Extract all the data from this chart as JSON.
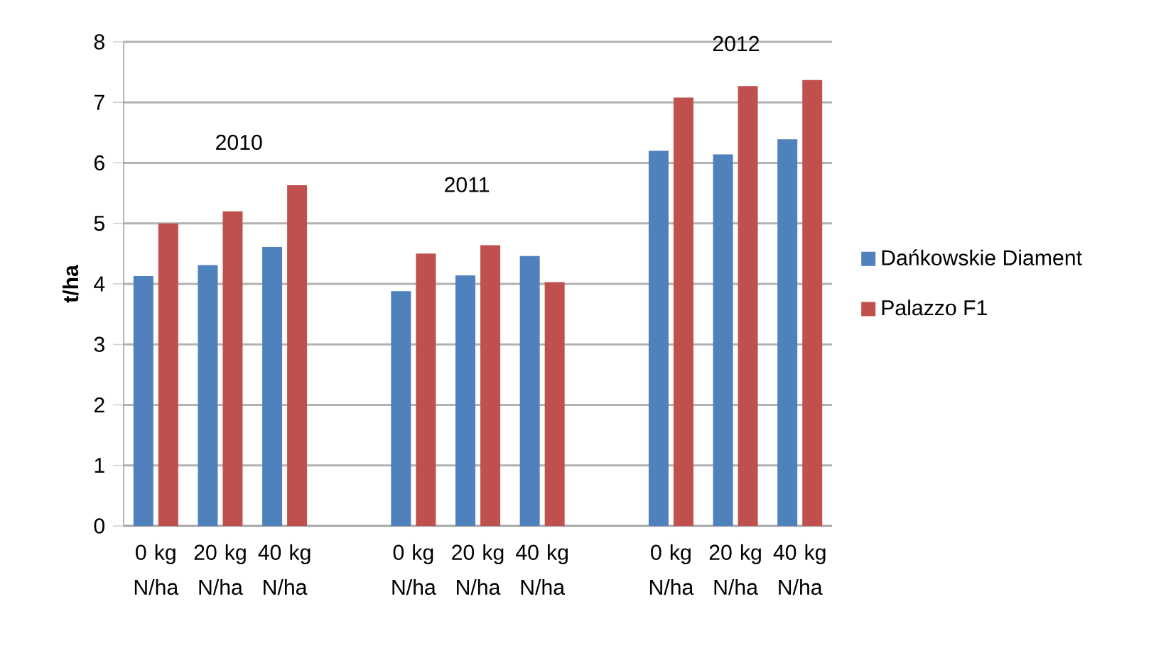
{
  "chart_data": {
    "type": "bar",
    "ylabel": "t/ha",
    "categories": [
      "0 kg N/ha",
      "20 kg N/ha",
      "40 kg N/ha",
      null,
      "0 kg N/ha",
      "20 kg N/ha",
      "40 kg N/ha",
      null,
      "0 kg N/ha",
      "20 kg N/ha",
      "40 kg N/ha"
    ],
    "series": [
      {
        "name": "Dańkowskie Diament",
        "color": "#4f81bd",
        "values": [
          4.13,
          4.31,
          4.61,
          null,
          3.88,
          4.14,
          4.46,
          null,
          6.2,
          6.14,
          6.39
        ]
      },
      {
        "name": "Palazzo F1",
        "color": "#c0504d",
        "values": [
          5.0,
          5.2,
          5.63,
          null,
          4.5,
          4.64,
          4.03,
          null,
          7.08,
          7.27,
          7.37
        ]
      }
    ],
    "annotations": [
      "2010",
      "2011",
      "2012"
    ],
    "ylim": [
      0,
      8
    ],
    "yticks": [
      0,
      1,
      2,
      3,
      4,
      5,
      6,
      7,
      8
    ],
    "grid": "y",
    "legend": "right"
  }
}
